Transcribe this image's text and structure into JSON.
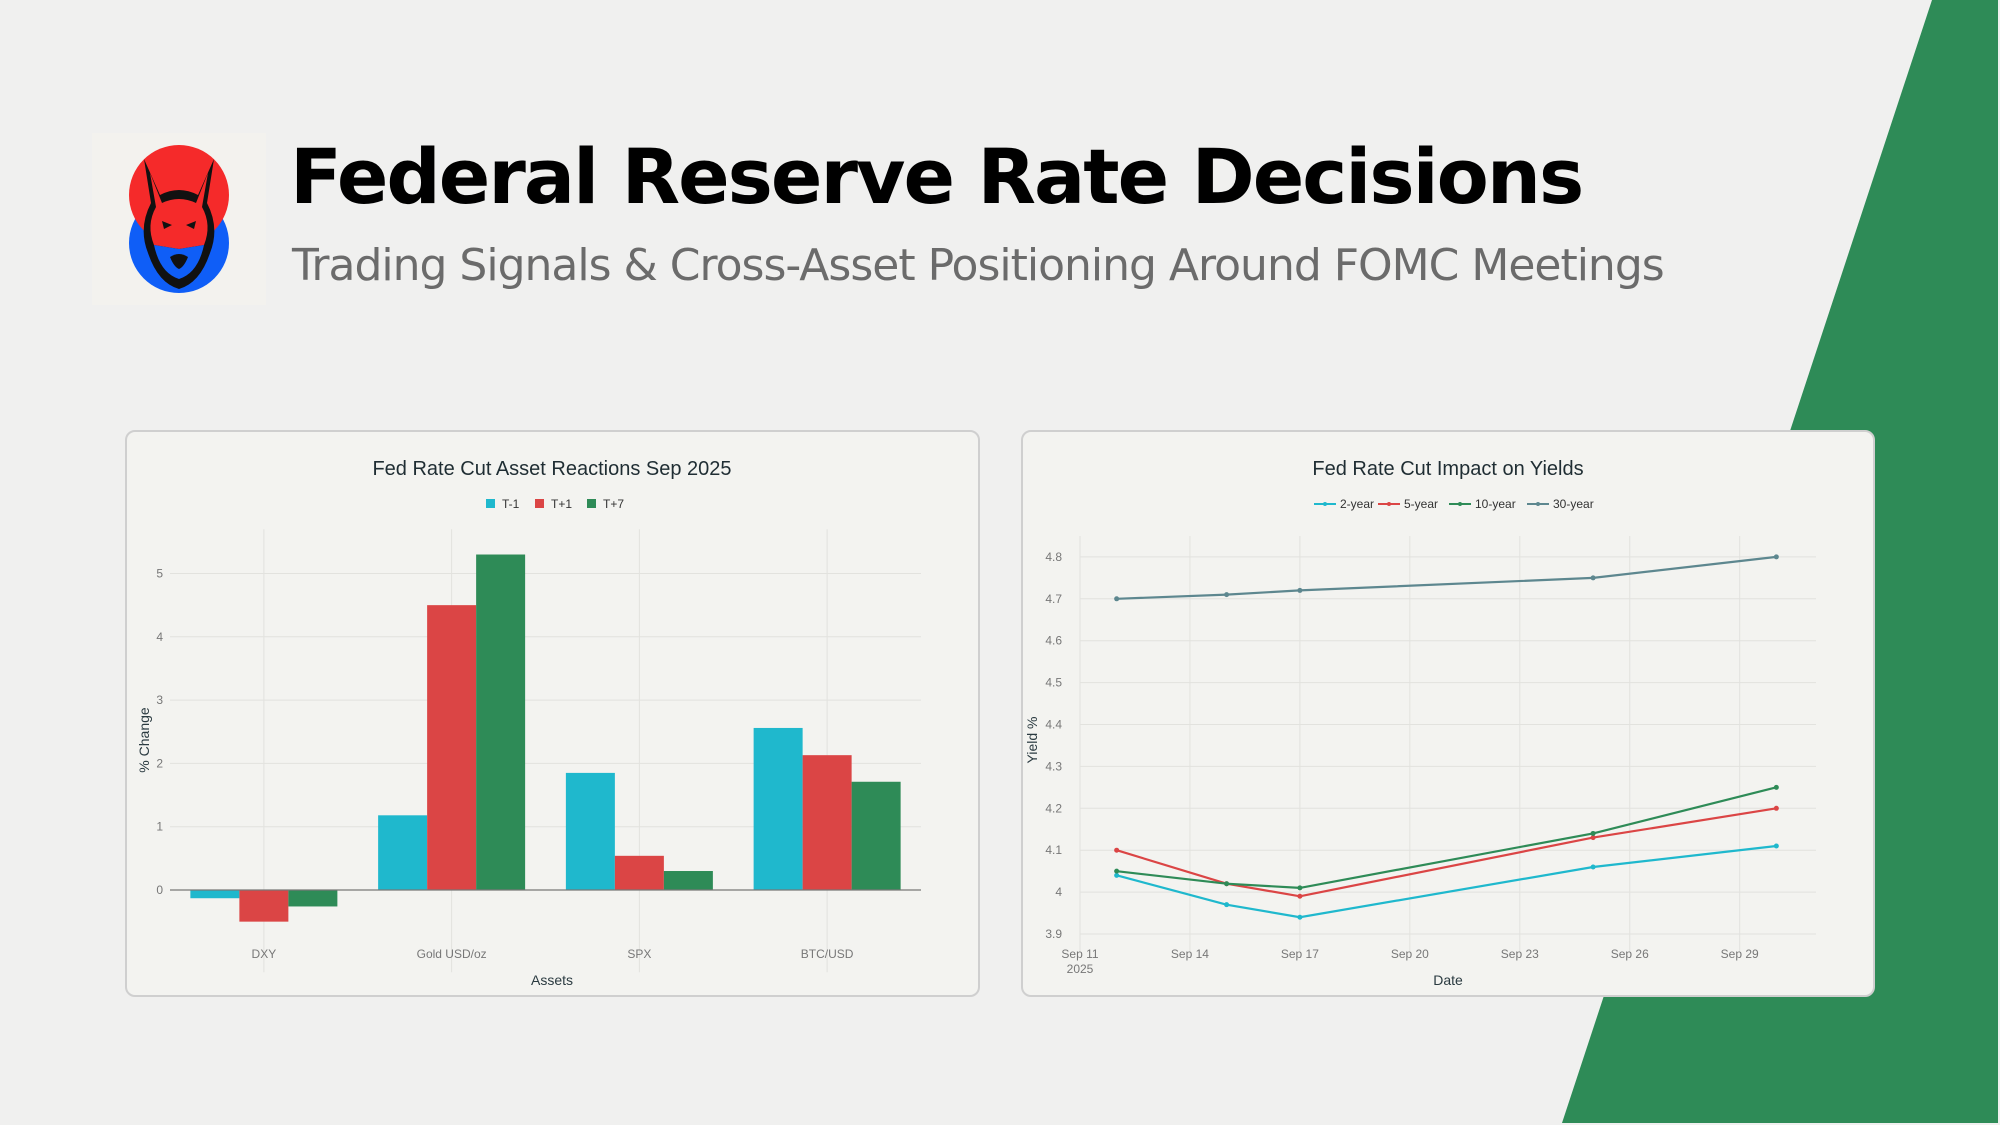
{
  "header": {
    "title": "Federal Reserve Rate Decisions",
    "subtitle": "Trading Signals & Cross-Asset Positioning Around FOMC Meetings",
    "logo_icon": "lynx-mascot-logo"
  },
  "theme": {
    "accent_green": "#2e8b57",
    "background": "#f0f0ef",
    "logo_red": "#f52a2a",
    "logo_blue": "#0f5ef7"
  },
  "chart_data": [
    {
      "type": "bar",
      "title": "Fed Rate Cut Asset Reactions Sep 2025",
      "xlabel": "Assets",
      "ylabel": "% Change",
      "categories": [
        "DXY",
        "Gold USD/oz",
        "SPX",
        "BTC/USD"
      ],
      "series": [
        {
          "name": "T-1",
          "color": "#1fb8cd",
          "values": [
            -0.13,
            1.18,
            1.85,
            2.56
          ]
        },
        {
          "name": "T+1",
          "color": "#db4545",
          "values": [
            -0.5,
            4.5,
            0.54,
            2.13
          ]
        },
        {
          "name": "T+7",
          "color": "#2e8b57",
          "values": [
            -0.26,
            5.3,
            0.3,
            1.71
          ]
        }
      ],
      "ylim": [
        -1.3,
        5.7
      ],
      "yticks": [
        0,
        1,
        2,
        3,
        4,
        5
      ],
      "legend": "top-center",
      "grid": true
    },
    {
      "type": "line",
      "title": "Fed Rate Cut Impact on Yields",
      "xlabel": "Date",
      "ylabel": "Yield %",
      "x": [
        "2025-09-12",
        "2025-09-15",
        "2025-09-17",
        "2025-09-25",
        "2025-09-30"
      ],
      "series": [
        {
          "name": "2-year",
          "color": "#1fb8cd",
          "values": [
            4.04,
            3.97,
            3.94,
            4.06,
            4.11
          ]
        },
        {
          "name": "5-year",
          "color": "#db4545",
          "values": [
            4.1,
            4.02,
            3.99,
            4.13,
            4.2
          ]
        },
        {
          "name": "10-year",
          "color": "#2e8b57",
          "values": [
            4.05,
            4.02,
            4.01,
            4.14,
            4.25
          ]
        },
        {
          "name": "30-year",
          "color": "#5d878f",
          "values": [
            4.7,
            4.71,
            4.72,
            4.75,
            4.8
          ]
        }
      ],
      "xticks": [
        {
          "date": "2025-09-11",
          "label": "Sep 11",
          "sub": "2025"
        },
        {
          "date": "2025-09-14",
          "label": "Sep 14",
          "sub": ""
        },
        {
          "date": "2025-09-17",
          "label": "Sep 17",
          "sub": ""
        },
        {
          "date": "2025-09-20",
          "label": "Sep 20",
          "sub": ""
        },
        {
          "date": "2025-09-23",
          "label": "Sep 23",
          "sub": ""
        },
        {
          "date": "2025-09-26",
          "label": "Sep 26",
          "sub": ""
        },
        {
          "date": "2025-09-29",
          "label": "Sep 29",
          "sub": ""
        }
      ],
      "xlim": [
        "2025-09-11",
        "2025-10-02"
      ],
      "yticks": [
        3.9,
        4,
        4.1,
        4.2,
        4.3,
        4.4,
        4.5,
        4.6,
        4.7,
        4.8
      ],
      "ylim": [
        3.88,
        4.85
      ],
      "legend": "top-center",
      "grid": true
    }
  ]
}
